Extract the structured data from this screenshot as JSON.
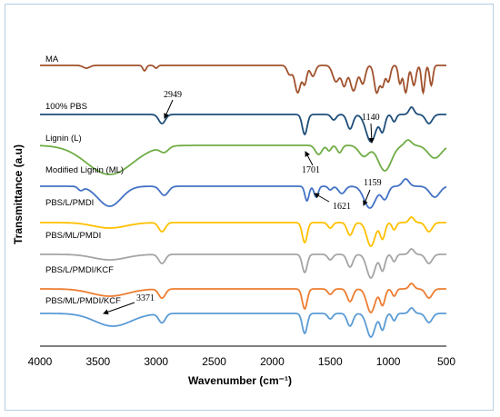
{
  "chart_data": {
    "type": "line",
    "xlabel": "Wavenumber (cm⁻¹)",
    "ylabel": "Transmittance (a.u)",
    "xlim": [
      4000,
      500
    ],
    "x_ticks": [
      "4000",
      "3500",
      "3000",
      "2500",
      "2000",
      "1500",
      "1000",
      "500"
    ],
    "grid": false,
    "series": [
      {
        "name": "MA",
        "color": "#a0522d"
      },
      {
        "name": "100% PBS",
        "color": "#1f4e79"
      },
      {
        "name": "Lignin (L)",
        "color": "#70ad47"
      },
      {
        "name": "Modified Lignin (ML)",
        "color": "#4472c4"
      },
      {
        "name": "PBS/L/PMDI",
        "color": "#ffc000"
      },
      {
        "name": "PBS/ML/PMDI",
        "color": "#a5a5a5"
      },
      {
        "name": "PBS/L/PMDI/KCF",
        "color": "#ed7d31"
      },
      {
        "name": "PBS/ML/PMDI/KCF",
        "color": "#5b9bd5"
      }
    ],
    "annotations": [
      {
        "text": "2949",
        "x": 2949
      },
      {
        "text": "1140",
        "x": 1140
      },
      {
        "text": "1701",
        "x": 1701
      },
      {
        "text": "1621",
        "x": 1621
      },
      {
        "text": "1159",
        "x": 1159
      },
      {
        "text": "3371",
        "x": 3371
      }
    ]
  }
}
